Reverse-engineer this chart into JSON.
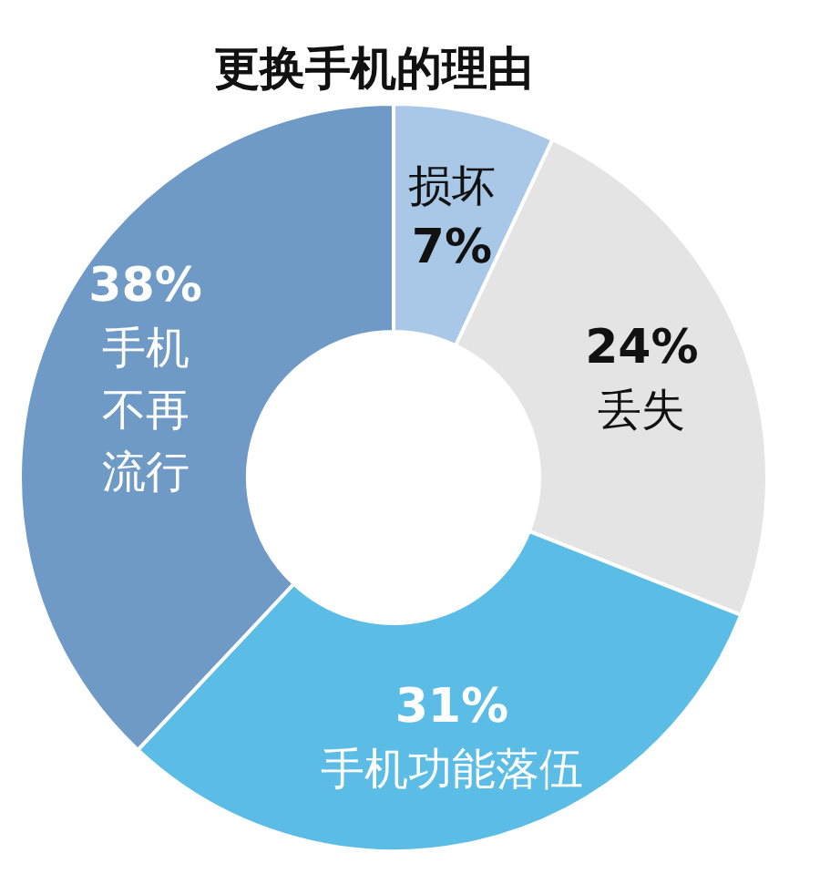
{
  "chart_data": {
    "type": "donut",
    "title": "更换手机的理由",
    "categories": [
      "损坏",
      "丢失",
      "手机功能落伍",
      "手机不再流行"
    ],
    "values": [
      7,
      24,
      31,
      38
    ],
    "colors": [
      "#a9c8e8",
      "#e4e4e4",
      "#5bbde6",
      "#6f9ac6"
    ],
    "value_labels": [
      "7%",
      "24%",
      "31%",
      "38%"
    ]
  }
}
